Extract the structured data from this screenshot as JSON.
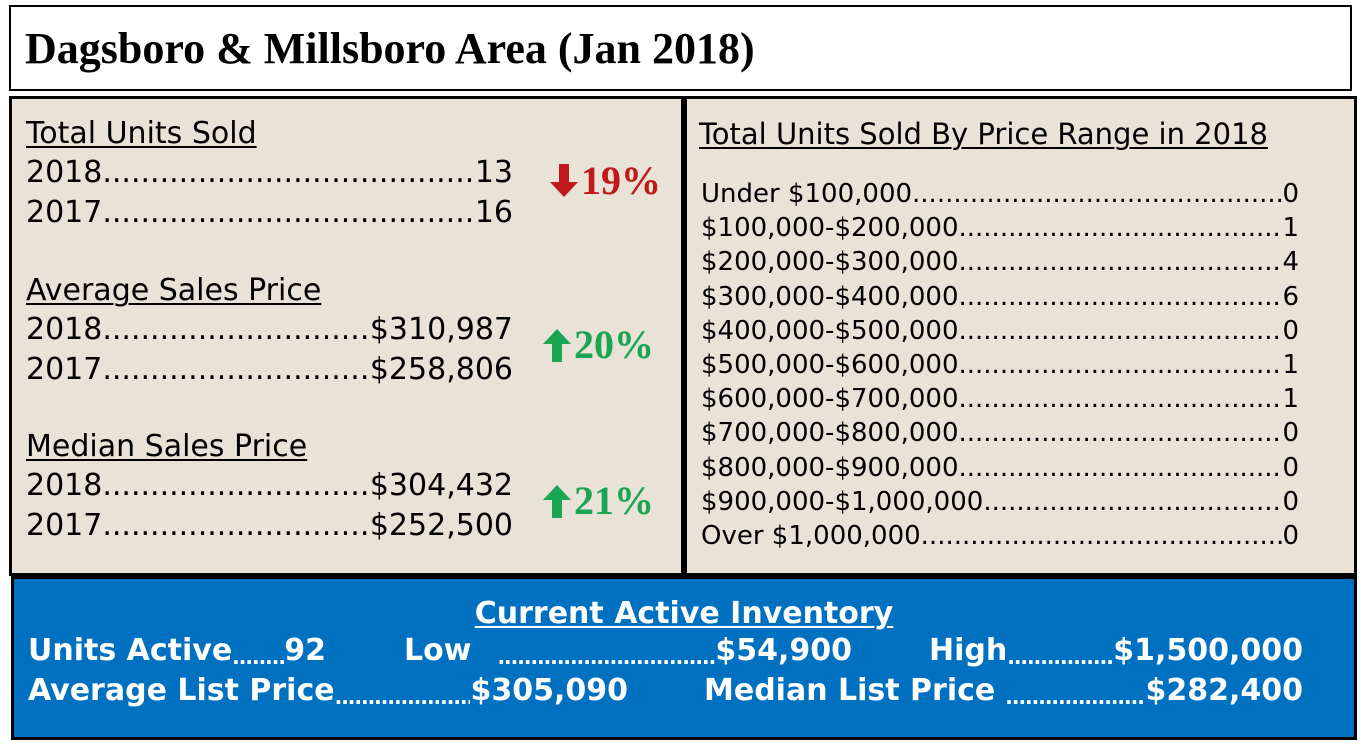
{
  "title": "Dagsboro & Millsboro Area (Jan 2018)",
  "left": {
    "units": {
      "heading": "Total Units Sold",
      "rows": [
        {
          "label": "2018",
          "value": "13"
        },
        {
          "label": "2017",
          "value": "16"
        }
      ],
      "change": {
        "direction": "down",
        "text": "19%"
      }
    },
    "avg": {
      "heading": "Average Sales Price",
      "rows": [
        {
          "label": "2018",
          "value": "$310,987"
        },
        {
          "label": "2017",
          "value": "$258,806"
        }
      ],
      "change": {
        "direction": "up",
        "text": "20%"
      }
    },
    "median": {
      "heading": "Median Sales Price",
      "rows": [
        {
          "label": "2018",
          "value": "$304,432"
        },
        {
          "label": "2017",
          "value": "$252,500"
        }
      ],
      "change": {
        "direction": "up",
        "text": "21%"
      }
    }
  },
  "right": {
    "heading": "Total Units Sold By Price Range in 2018",
    "ranges": [
      {
        "label": "Under $100,000",
        "value": "0"
      },
      {
        "label": "$100,000-$200,000",
        "value": "1"
      },
      {
        "label": "$200,000-$300,000",
        "value": "4"
      },
      {
        "label": "$300,000-$400,000",
        "value": "6"
      },
      {
        "label": "$400,000-$500,000",
        "value": "0"
      },
      {
        "label": "$500,000-$600,000",
        "value": "1"
      },
      {
        "label": "$600,000-$700,000",
        "value": "1"
      },
      {
        "label": "$700,000-$800,000",
        "value": "0"
      },
      {
        "label": "$800,000-$900,000",
        "value": "0"
      },
      {
        "label": "$900,000-$1,000,000",
        "value": "0"
      },
      {
        "label": "Over $1,000,000",
        "value": "0"
      }
    ]
  },
  "inventory": {
    "heading": "Current Active Inventory",
    "units_active_label": "Units Active",
    "units_active_value": "92",
    "low_label": "Low",
    "low_value": "$54,900",
    "high_label": "High",
    "high_value": "$1,500,000",
    "avg_list_label": "Average List Price",
    "avg_list_value": "$305,090",
    "median_list_label": "Median List Price",
    "median_list_value": "$282,400"
  },
  "colors": {
    "panel_bg": "#e8e2d7",
    "inventory_bg": "#0070c0",
    "down": "#c0181b",
    "up": "#1aa553"
  },
  "icons": {
    "down": "arrow-down-icon",
    "up": "arrow-up-icon"
  }
}
